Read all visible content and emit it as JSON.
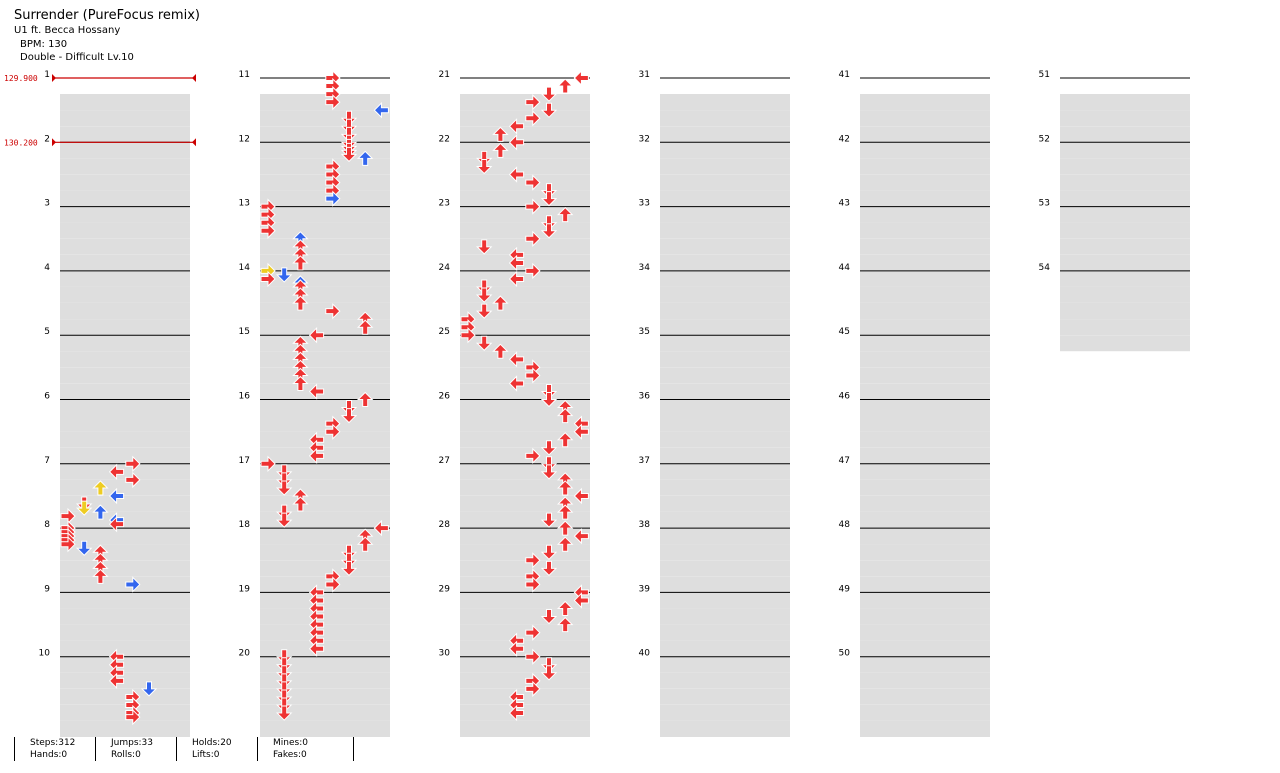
{
  "header": {
    "title": "Surrender (PureFocus remix)",
    "artist": "U1 ft. Becca Hossany",
    "bpm": "BPM: 130",
    "difficulty": "Double - Difficult Lv.10"
  },
  "bpm_changes": [
    {
      "measure": 1,
      "label": "129.900"
    },
    {
      "measure": 2,
      "label": "130.200"
    }
  ],
  "measure_labels": [
    "1",
    "2",
    "3",
    "4",
    "5",
    "6",
    "7",
    "8",
    "9",
    "10",
    "11",
    "12",
    "13",
    "14",
    "15",
    "16",
    "17",
    "18",
    "19",
    "20",
    "21",
    "22",
    "23",
    "24",
    "25",
    "26",
    "27",
    "28",
    "29",
    "30",
    "31",
    "32",
    "33",
    "34",
    "35",
    "36",
    "37",
    "38",
    "39",
    "40",
    "41",
    "42",
    "43",
    "44",
    "45",
    "46",
    "47",
    "48",
    "49",
    "50",
    "51",
    "52",
    "53",
    "54"
  ],
  "colors": {
    "row_shade": "#dedede",
    "measure_line": "#000000",
    "beat_red": "#ee3333",
    "beat_blue": "#3366ee",
    "beat_yellow": "#eecc22",
    "hold_green": "#66cc66",
    "bpm_marker": "#cc0000"
  },
  "stats": {
    "steps": "Steps:312",
    "hands": "Hands:0",
    "jumps": "Jumps:33",
    "rolls": "Rolls:0",
    "holds": "Holds:20",
    "lifts": "Lifts:0",
    "mines": "Mines:0",
    "fakes": "Fakes:0"
  },
  "notes": [
    {
      "m": 7,
      "b": 0.0,
      "l": 4,
      "c": "r"
    },
    {
      "m": 7,
      "b": 0.5,
      "l": 3,
      "c": "r"
    },
    {
      "m": 7,
      "b": 1.0,
      "l": 4,
      "c": "r"
    },
    {
      "m": 7,
      "b": 1.5,
      "l": 2,
      "c": "y"
    },
    {
      "m": 7,
      "b": 2.0,
      "l": 3,
      "c": "b"
    },
    {
      "m": 7,
      "b": 2.5,
      "l": 1,
      "c": "r"
    },
    {
      "m": 7,
      "b": 2.75,
      "l": 1,
      "c": "y"
    },
    {
      "m": 7,
      "b": 3.0,
      "l": 2,
      "c": "b"
    },
    {
      "m": 7,
      "b": 3.5,
      "l": 3,
      "c": "b"
    },
    {
      "m": 7,
      "b": 3.75,
      "l": 3,
      "c": "r"
    },
    {
      "m": 7,
      "b": 3.25,
      "l": 0,
      "c": "r"
    },
    {
      "m": 8,
      "b": 0.0,
      "l": 0,
      "c": "r"
    },
    {
      "m": 8,
      "b": 0.25,
      "l": 0,
      "c": "r"
    },
    {
      "m": 8,
      "b": 0.5,
      "l": 0,
      "c": "r"
    },
    {
      "m": 8,
      "b": 0.75,
      "l": 0,
      "c": "r"
    },
    {
      "m": 8,
      "b": 1.0,
      "l": 0,
      "c": "r"
    },
    {
      "m": 8,
      "b": 1.25,
      "l": 1,
      "c": "b"
    },
    {
      "m": 8,
      "b": 1.5,
      "l": 2,
      "c": "r"
    },
    {
      "m": 8,
      "b": 2.0,
      "l": 2,
      "c": "r"
    },
    {
      "m": 8,
      "b": 2.5,
      "l": 2,
      "c": "r"
    },
    {
      "m": 8,
      "b": 3.0,
      "l": 2,
      "c": "r"
    },
    {
      "m": 8,
      "b": 3.5,
      "l": 4,
      "c": "b"
    },
    {
      "m": 10,
      "b": 0.0,
      "l": 3,
      "c": "r"
    },
    {
      "m": 10,
      "b": 0.5,
      "l": 3,
      "c": "r"
    },
    {
      "m": 10,
      "b": 1.0,
      "l": 3,
      "c": "r"
    },
    {
      "m": 10,
      "b": 1.5,
      "l": 3,
      "c": "r"
    },
    {
      "m": 10,
      "b": 2.0,
      "l": 5,
      "c": "b"
    },
    {
      "m": 10,
      "b": 2.5,
      "l": 4,
      "c": "r"
    },
    {
      "m": 10,
      "b": 3.0,
      "l": 4,
      "c": "r"
    },
    {
      "m": 10,
      "b": 3.0,
      "l": 4,
      "c": "r"
    },
    {
      "m": 10,
      "b": 3.5,
      "l": 4,
      "c": "r"
    },
    {
      "m": 10,
      "b": 3.75,
      "l": 4,
      "c": "r"
    },
    {
      "m": 11,
      "b": 0.0,
      "l": 4,
      "c": "r"
    },
    {
      "m": 11,
      "b": 0.5,
      "l": 4,
      "c": "r"
    },
    {
      "m": 11,
      "b": 1.0,
      "l": 4,
      "c": "r"
    },
    {
      "m": 11,
      "b": 1.5,
      "l": 4,
      "c": "r"
    },
    {
      "m": 11,
      "b": 2.0,
      "l": 7,
      "c": "b"
    },
    {
      "m": 11,
      "b": 2.5,
      "l": 5,
      "c": "r"
    },
    {
      "m": 11,
      "b": 3.0,
      "l": 5,
      "c": "r"
    },
    {
      "m": 11,
      "b": 3.5,
      "l": 5,
      "c": "r"
    },
    {
      "m": 12,
      "b": 0.0,
      "l": 5,
      "c": "r"
    },
    {
      "m": 12,
      "b": 0.25,
      "l": 5,
      "c": "r"
    },
    {
      "m": 12,
      "b": 0.5,
      "l": 5,
      "c": "r"
    },
    {
      "m": 12,
      "b": 0.75,
      "l": 5,
      "c": "r"
    },
    {
      "m": 12,
      "b": 1.0,
      "l": 6,
      "c": "b"
    },
    {
      "m": 12,
      "b": 1.5,
      "l": 4,
      "c": "r"
    },
    {
      "m": 12,
      "b": 2.0,
      "l": 4,
      "c": "r"
    },
    {
      "m": 12,
      "b": 2.5,
      "l": 4,
      "c": "r"
    },
    {
      "m": 12,
      "b": 3.0,
      "l": 4,
      "c": "r"
    },
    {
      "m": 12,
      "b": 3.5,
      "l": 4,
      "c": "b"
    },
    {
      "m": 13,
      "b": 0.0,
      "l": 0,
      "c": "r"
    },
    {
      "m": 13,
      "b": 0.5,
      "l": 0,
      "c": "r"
    },
    {
      "m": 13,
      "b": 1.0,
      "l": 0,
      "c": "r"
    },
    {
      "m": 13,
      "b": 1.5,
      "l": 0,
      "c": "r"
    },
    {
      "m": 13,
      "b": 2.0,
      "l": 2,
      "c": "b"
    },
    {
      "m": 13,
      "b": 2.5,
      "l": 2,
      "c": "r"
    },
    {
      "m": 13,
      "b": 3.0,
      "l": 2,
      "c": "r"
    },
    {
      "m": 13,
      "b": 3.5,
      "l": 2,
      "c": "r"
    },
    {
      "m": 14,
      "b": 0.0,
      "l": 0,
      "c": "y"
    },
    {
      "m": 14,
      "b": 0.25,
      "l": 1,
      "c": "b"
    },
    {
      "m": 14,
      "b": 0.5,
      "l": 0,
      "c": "r"
    },
    {
      "m": 14,
      "b": 0.75,
      "l": 2,
      "c": "b"
    },
    {
      "m": 14,
      "b": 1.0,
      "l": 2,
      "c": "r"
    },
    {
      "m": 14,
      "b": 1.5,
      "l": 2,
      "c": "r"
    },
    {
      "m": 14,
      "b": 2.0,
      "l": 2,
      "c": "r"
    },
    {
      "m": 14,
      "b": 2.5,
      "l": 4,
      "c": "r"
    },
    {
      "m": 14,
      "b": 3.0,
      "l": 6,
      "c": "r"
    },
    {
      "m": 14,
      "b": 3.5,
      "l": 6,
      "c": "r"
    },
    {
      "m": 15,
      "b": 0.0,
      "l": 3,
      "c": "r"
    },
    {
      "m": 15,
      "b": 0.5,
      "l": 2,
      "c": "r"
    },
    {
      "m": 15,
      "b": 1.0,
      "l": 2,
      "c": "r"
    },
    {
      "m": 15,
      "b": 1.5,
      "l": 2,
      "c": "r"
    },
    {
      "m": 15,
      "b": 2.0,
      "l": 2,
      "c": "r"
    },
    {
      "m": 15,
      "b": 2.5,
      "l": 2,
      "c": "r"
    },
    {
      "m": 15,
      "b": 3.0,
      "l": 2,
      "c": "r"
    },
    {
      "m": 15,
      "b": 3.5,
      "l": 3,
      "c": "r"
    },
    {
      "m": 16,
      "b": 0.0,
      "l": 6,
      "c": "r"
    },
    {
      "m": 16,
      "b": 0.5,
      "l": 5,
      "c": "r"
    },
    {
      "m": 16,
      "b": 1.0,
      "l": 5,
      "c": "r"
    },
    {
      "m": 16,
      "b": 1.5,
      "l": 4,
      "c": "r"
    },
    {
      "m": 16,
      "b": 2.0,
      "l": 4,
      "c": "r"
    },
    {
      "m": 16,
      "b": 2.5,
      "l": 3,
      "c": "r"
    },
    {
      "m": 16,
      "b": 3.0,
      "l": 3,
      "c": "r"
    },
    {
      "m": 16,
      "b": 3.5,
      "l": 3,
      "c": "r"
    },
    {
      "m": 17,
      "b": 0.0,
      "l": 0,
      "c": "r"
    },
    {
      "m": 17,
      "b": 0.5,
      "l": 1,
      "c": "r"
    },
    {
      "m": 17,
      "b": 1.0,
      "l": 1,
      "c": "r"
    },
    {
      "m": 17,
      "b": 1.5,
      "l": 1,
      "c": "r"
    },
    {
      "m": 17,
      "b": 2.0,
      "l": 2,
      "c": "r"
    },
    {
      "m": 17,
      "b": 2.5,
      "l": 2,
      "c": "r"
    },
    {
      "m": 17,
      "b": 3.0,
      "l": 1,
      "c": "r"
    },
    {
      "m": 17,
      "b": 3.5,
      "l": 1,
      "c": "r"
    },
    {
      "m": 18,
      "b": 0.0,
      "l": 7,
      "c": "r"
    },
    {
      "m": 18,
      "b": 0.5,
      "l": 6,
      "c": "r"
    },
    {
      "m": 18,
      "b": 1.0,
      "l": 6,
      "c": "r"
    },
    {
      "m": 18,
      "b": 1.5,
      "l": 5,
      "c": "r"
    },
    {
      "m": 18,
      "b": 2.0,
      "l": 5,
      "c": "r"
    },
    {
      "m": 18,
      "b": 2.5,
      "l": 5,
      "c": "r"
    },
    {
      "m": 18,
      "b": 3.0,
      "l": 4,
      "c": "r"
    },
    {
      "m": 18,
      "b": 3.5,
      "l": 4,
      "c": "r"
    },
    {
      "m": 19,
      "b": 0.0,
      "l": 3,
      "c": "r"
    },
    {
      "m": 19,
      "b": 0.5,
      "l": 3,
      "c": "r"
    },
    {
      "m": 19,
      "b": 1.0,
      "l": 3,
      "c": "r"
    },
    {
      "m": 19,
      "b": 1.5,
      "l": 3,
      "c": "r"
    },
    {
      "m": 19,
      "b": 2.0,
      "l": 3,
      "c": "r"
    },
    {
      "m": 19,
      "b": 2.5,
      "l": 3,
      "c": "r"
    },
    {
      "m": 19,
      "b": 3.0,
      "l": 3,
      "c": "r"
    },
    {
      "m": 19,
      "b": 3.5,
      "l": 3,
      "c": "r"
    },
    {
      "m": 20,
      "b": 0.0,
      "l": 1,
      "c": "r"
    },
    {
      "m": 20,
      "b": 0.5,
      "l": 1,
      "c": "r"
    },
    {
      "m": 20,
      "b": 1.0,
      "l": 1,
      "c": "r"
    },
    {
      "m": 20,
      "b": 1.5,
      "l": 1,
      "c": "r"
    },
    {
      "m": 20,
      "b": 2.0,
      "l": 1,
      "c": "r"
    },
    {
      "m": 20,
      "b": 2.5,
      "l": 1,
      "c": "r"
    },
    {
      "m": 20,
      "b": 3.0,
      "l": 1,
      "c": "r"
    },
    {
      "m": 20,
      "b": 3.5,
      "l": 1,
      "c": "r"
    },
    {
      "m": 21,
      "b": 0.0,
      "l": 7,
      "c": "r"
    },
    {
      "m": 21,
      "b": 0.5,
      "l": 6,
      "c": "r"
    },
    {
      "m": 21,
      "b": 1.0,
      "l": 5,
      "c": "r"
    },
    {
      "m": 21,
      "b": 1.5,
      "l": 4,
      "c": "r"
    },
    {
      "m": 21,
      "b": 2.0,
      "l": 5,
      "c": "r"
    },
    {
      "m": 21,
      "b": 2.5,
      "l": 4,
      "c": "r"
    },
    {
      "m": 21,
      "b": 3.0,
      "l": 3,
      "c": "r"
    },
    {
      "m": 21,
      "b": 3.5,
      "l": 2,
      "c": "r"
    },
    {
      "m": 22,
      "b": 0.0,
      "l": 3,
      "c": "r"
    },
    {
      "m": 22,
      "b": 0.5,
      "l": 2,
      "c": "r"
    },
    {
      "m": 22,
      "b": 1.0,
      "l": 1,
      "c": "r"
    },
    {
      "m": 22,
      "b": 1.5,
      "l": 1,
      "c": "r"
    },
    {
      "m": 22,
      "b": 2.0,
      "l": 3,
      "c": "r"
    },
    {
      "m": 22,
      "b": 2.5,
      "l": 4,
      "c": "r"
    },
    {
      "m": 22,
      "b": 3.0,
      "l": 5,
      "c": "r"
    },
    {
      "m": 22,
      "b": 3.5,
      "l": 5,
      "c": "r"
    },
    {
      "m": 23,
      "b": 0.0,
      "l": 4,
      "c": "r"
    },
    {
      "m": 23,
      "b": 0.5,
      "l": 6,
      "c": "r"
    },
    {
      "m": 23,
      "b": 1.0,
      "l": 5,
      "c": "r"
    },
    {
      "m": 23,
      "b": 1.5,
      "l": 5,
      "c": "r"
    },
    {
      "m": 23,
      "b": 2.0,
      "l": 4,
      "c": "r"
    },
    {
      "m": 23,
      "b": 2.5,
      "l": 1,
      "c": "r"
    },
    {
      "m": 23,
      "b": 3.0,
      "l": 3,
      "c": "r"
    },
    {
      "m": 23,
      "b": 3.5,
      "l": 3,
      "c": "r"
    },
    {
      "m": 24,
      "b": 0.0,
      "l": 4,
      "c": "r"
    },
    {
      "m": 24,
      "b": 0.5,
      "l": 3,
      "c": "r"
    },
    {
      "m": 24,
      "b": 1.0,
      "l": 1,
      "c": "r"
    },
    {
      "m": 24,
      "b": 1.5,
      "l": 1,
      "c": "r"
    },
    {
      "m": 24,
      "b": 2.0,
      "l": 2,
      "c": "r"
    },
    {
      "m": 24,
      "b": 2.5,
      "l": 1,
      "c": "r"
    },
    {
      "m": 24,
      "b": 3.0,
      "l": 0,
      "c": "r"
    },
    {
      "m": 24,
      "b": 3.5,
      "l": 0,
      "c": "r"
    },
    {
      "m": 25,
      "b": 0.0,
      "l": 0,
      "c": "r"
    },
    {
      "m": 25,
      "b": 0.5,
      "l": 1,
      "c": "r"
    },
    {
      "m": 25,
      "b": 1.0,
      "l": 2,
      "c": "r"
    },
    {
      "m": 25,
      "b": 1.5,
      "l": 3,
      "c": "r"
    },
    {
      "m": 25,
      "b": 2.0,
      "l": 4,
      "c": "r"
    },
    {
      "m": 25,
      "b": 2.5,
      "l": 4,
      "c": "r"
    },
    {
      "m": 25,
      "b": 3.0,
      "l": 3,
      "c": "r"
    },
    {
      "m": 25,
      "b": 3.5,
      "l": 5,
      "c": "r"
    },
    {
      "m": 26,
      "b": 0.0,
      "l": 5,
      "c": "r"
    },
    {
      "m": 26,
      "b": 0.5,
      "l": 6,
      "c": "r"
    },
    {
      "m": 26,
      "b": 1.0,
      "l": 6,
      "c": "r"
    },
    {
      "m": 26,
      "b": 1.5,
      "l": 7,
      "c": "r"
    },
    {
      "m": 26,
      "b": 2.0,
      "l": 7,
      "c": "r"
    },
    {
      "m": 26,
      "b": 2.5,
      "l": 6,
      "c": "r"
    },
    {
      "m": 26,
      "b": 3.0,
      "l": 5,
      "c": "r"
    },
    {
      "m": 26,
      "b": 3.5,
      "l": 4,
      "c": "r"
    },
    {
      "m": 27,
      "b": 0.0,
      "l": 5,
      "c": "r"
    },
    {
      "m": 27,
      "b": 0.5,
      "l": 5,
      "c": "r"
    },
    {
      "m": 27,
      "b": 1.0,
      "l": 6,
      "c": "r"
    },
    {
      "m": 27,
      "b": 1.5,
      "l": 6,
      "c": "r"
    },
    {
      "m": 27,
      "b": 2.0,
      "l": 7,
      "c": "r"
    },
    {
      "m": 27,
      "b": 2.5,
      "l": 6,
      "c": "r"
    },
    {
      "m": 27,
      "b": 3.0,
      "l": 6,
      "c": "r"
    },
    {
      "m": 27,
      "b": 3.5,
      "l": 5,
      "c": "r"
    },
    {
      "m": 28,
      "b": 0.0,
      "l": 6,
      "c": "r"
    },
    {
      "m": 28,
      "b": 0.5,
      "l": 7,
      "c": "r"
    },
    {
      "m": 28,
      "b": 1.0,
      "l": 6,
      "c": "r"
    },
    {
      "m": 28,
      "b": 1.5,
      "l": 5,
      "c": "r"
    },
    {
      "m": 28,
      "b": 2.0,
      "l": 4,
      "c": "r"
    },
    {
      "m": 28,
      "b": 2.5,
      "l": 5,
      "c": "r"
    },
    {
      "m": 28,
      "b": 3.0,
      "l": 4,
      "c": "r"
    },
    {
      "m": 28,
      "b": 3.5,
      "l": 4,
      "c": "r"
    },
    {
      "m": 29,
      "b": 0.0,
      "l": 7,
      "c": "r"
    },
    {
      "m": 29,
      "b": 0.5,
      "l": 7,
      "c": "r"
    },
    {
      "m": 29,
      "b": 1.0,
      "l": 6,
      "c": "r"
    },
    {
      "m": 29,
      "b": 1.5,
      "l": 5,
      "c": "r"
    },
    {
      "m": 29,
      "b": 2.0,
      "l": 6,
      "c": "r"
    },
    {
      "m": 29,
      "b": 2.5,
      "l": 4,
      "c": "r"
    },
    {
      "m": 29,
      "b": 3.0,
      "l": 3,
      "c": "r"
    },
    {
      "m": 29,
      "b": 3.5,
      "l": 3,
      "c": "r"
    },
    {
      "m": 30,
      "b": 0.0,
      "l": 4,
      "c": "r"
    },
    {
      "m": 30,
      "b": 0.5,
      "l": 5,
      "c": "r"
    },
    {
      "m": 30,
      "b": 1.0,
      "l": 5,
      "c": "r"
    },
    {
      "m": 30,
      "b": 1.5,
      "l": 4,
      "c": "r"
    },
    {
      "m": 30,
      "b": 2.0,
      "l": 4,
      "c": "r"
    },
    {
      "m": 30,
      "b": 2.5,
      "l": 3,
      "c": "r"
    },
    {
      "m": 30,
      "b": 3.0,
      "l": 3,
      "c": "r"
    },
    {
      "m": 30,
      "b": 3.5,
      "l": 3,
      "c": "r"
    }
  ]
}
